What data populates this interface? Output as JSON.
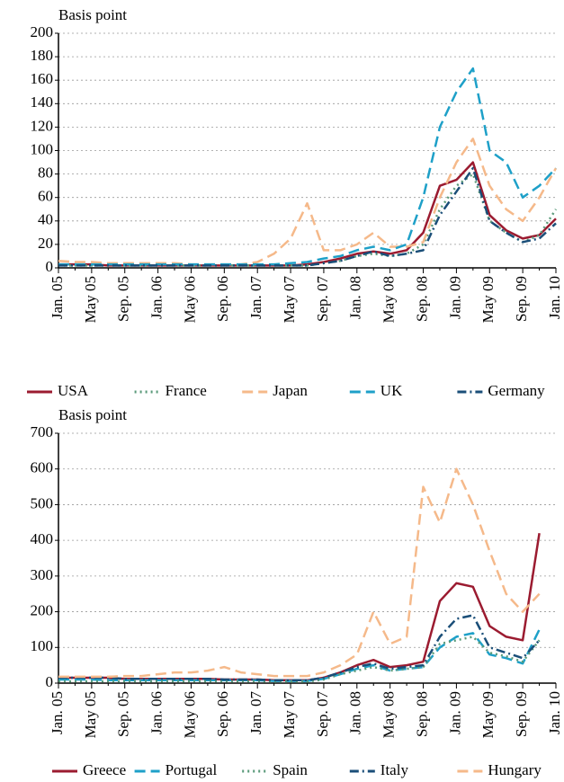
{
  "chart_data": [
    {
      "type": "line",
      "y_label": "Basis point",
      "categories": [
        "Jan. 05",
        null,
        "May 05",
        null,
        "Sep. 05",
        null,
        "Jan. 06",
        null,
        "May 06",
        null,
        "Sep. 06",
        null,
        "Jan. 07",
        null,
        "May 07",
        null,
        "Sep. 07",
        null,
        "Jan. 08",
        null,
        "May 08",
        null,
        "Sep. 08",
        null,
        "Jan. 09",
        null,
        "May 09",
        null,
        "Sep. 09",
        null,
        "Jan. 10"
      ],
      "ylim": [
        0,
        200
      ],
      "yticks": [
        0,
        20,
        40,
        60,
        80,
        100,
        120,
        140,
        160,
        180,
        200
      ],
      "grid": true,
      "series": [
        {
          "name": "USA",
          "color": "#9b1b30",
          "dash": "solid",
          "values": [
            3,
            3,
            3,
            2,
            2,
            2,
            2,
            2,
            2,
            2,
            2,
            2,
            2,
            2,
            2,
            3,
            5,
            8,
            12,
            14,
            12,
            15,
            30,
            70,
            75,
            90,
            45,
            32,
            25,
            28,
            42
          ]
        },
        {
          "name": "France",
          "color": "#5a9a7a",
          "dash": "dotted",
          "values": [
            2,
            2,
            2,
            2,
            2,
            2,
            2,
            2,
            2,
            2,
            2,
            2,
            2,
            2,
            2,
            2,
            4,
            6,
            10,
            12,
            10,
            12,
            20,
            50,
            70,
            80,
            40,
            30,
            22,
            28,
            50
          ]
        },
        {
          "name": "Japan",
          "color": "#f5b98a",
          "dash": "dashed",
          "values": [
            6,
            5,
            5,
            4,
            4,
            4,
            4,
            4,
            3,
            3,
            3,
            3,
            5,
            12,
            25,
            55,
            15,
            15,
            20,
            30,
            18,
            18,
            22,
            60,
            90,
            110,
            70,
            50,
            40,
            60,
            85
          ]
        },
        {
          "name": "UK",
          "color": "#1ea0c8",
          "dash": "dashed",
          "values": [
            3,
            3,
            3,
            3,
            3,
            3,
            3,
            3,
            3,
            3,
            3,
            3,
            3,
            3,
            4,
            5,
            8,
            10,
            15,
            18,
            15,
            20,
            60,
            120,
            150,
            170,
            100,
            90,
            60,
            70,
            85
          ]
        },
        {
          "name": "Germany",
          "color": "#1a4e78",
          "dash": "dashdot",
          "values": [
            2,
            2,
            2,
            2,
            2,
            2,
            2,
            2,
            2,
            2,
            2,
            2,
            2,
            2,
            2,
            2,
            4,
            6,
            10,
            14,
            10,
            12,
            15,
            45,
            65,
            85,
            40,
            30,
            22,
            25,
            38
          ]
        }
      ]
    },
    {
      "type": "line",
      "y_label": "Basis point",
      "categories": [
        "Jan. 05",
        null,
        "May 05",
        null,
        "Sep. 05",
        null,
        "Jan. 06",
        null,
        "May 06",
        null,
        "Sep. 06",
        null,
        "Jan. 07",
        null,
        "May 07",
        null,
        "Sep. 07",
        null,
        "Jan. 08",
        null,
        "May 08",
        null,
        "Sep. 08",
        null,
        "Jan. 09",
        null,
        "May 09",
        null,
        "Sep. 09",
        null,
        "Jan. 10"
      ],
      "ylim": [
        0,
        700
      ],
      "yticks": [
        0,
        100,
        200,
        300,
        400,
        500,
        600,
        700
      ],
      "grid": true,
      "series": [
        {
          "name": "Greece",
          "color": "#9b1b30",
          "dash": "solid",
          "values": [
            15,
            15,
            15,
            15,
            12,
            12,
            12,
            12,
            12,
            12,
            10,
            10,
            10,
            8,
            8,
            8,
            15,
            30,
            50,
            65,
            45,
            50,
            60,
            230,
            280,
            270,
            160,
            130,
            120,
            420,
            null
          ]
        },
        {
          "name": "Portugal",
          "color": "#1ea0c8",
          "dash": "dashed",
          "values": [
            10,
            10,
            10,
            8,
            8,
            8,
            8,
            8,
            8,
            8,
            8,
            8,
            8,
            6,
            6,
            6,
            12,
            25,
            40,
            50,
            35,
            40,
            45,
            100,
            130,
            140,
            80,
            70,
            55,
            150,
            null
          ]
        },
        {
          "name": "Spain",
          "color": "#5a9a7a",
          "dash": "dotted",
          "values": [
            5,
            5,
            5,
            5,
            5,
            5,
            5,
            5,
            5,
            5,
            5,
            5,
            5,
            4,
            4,
            4,
            10,
            25,
            35,
            45,
            35,
            40,
            45,
            110,
            120,
            130,
            85,
            75,
            60,
            120,
            null
          ]
        },
        {
          "name": "Italy",
          "color": "#1a4e78",
          "dash": "dashdot",
          "values": [
            15,
            15,
            15,
            15,
            12,
            12,
            12,
            12,
            12,
            12,
            10,
            10,
            10,
            8,
            8,
            8,
            15,
            30,
            45,
            55,
            40,
            45,
            50,
            130,
            180,
            190,
            100,
            85,
            70,
            120,
            null
          ]
        },
        {
          "name": "Hungary",
          "color": "#f5b98a",
          "dash": "dashed",
          "values": [
            18,
            18,
            18,
            18,
            20,
            20,
            25,
            30,
            30,
            35,
            45,
            30,
            25,
            20,
            20,
            20,
            30,
            50,
            80,
            200,
            110,
            130,
            550,
            450,
            600,
            500,
            370,
            250,
            200,
            250,
            null
          ]
        }
      ]
    }
  ]
}
